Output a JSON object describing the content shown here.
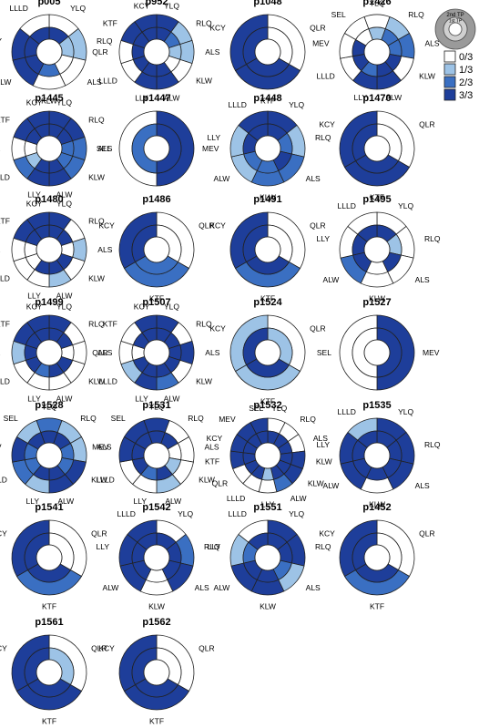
{
  "chart_data": {
    "type": "sunburst",
    "rings": [
      "1st TP",
      "2nd TP"
    ],
    "legend": {
      "position": "top-right",
      "key_labels": [
        "2nd TP",
        "1st TP"
      ],
      "levels": [
        {
          "label": "0/3",
          "value": 0,
          "color": "#ffffff"
        },
        {
          "label": "1/3",
          "value": 1,
          "color": "#9dc3e6"
        },
        {
          "label": "2/3",
          "value": 2,
          "color": "#3a6fc2"
        },
        {
          "label": "3/3",
          "value": 3,
          "color": "#1e3e9a"
        }
      ]
    },
    "patients": [
      {
        "id": "p005",
        "segments": [
          "YLQ",
          "RLQ",
          "ALS",
          "KLW",
          "ALW",
          "LLY",
          "LLLD"
        ],
        "outer": [
          0,
          1,
          0,
          0,
          3,
          3,
          0
        ],
        "inner": [
          3,
          1,
          0,
          2,
          3,
          3,
          3
        ]
      },
      {
        "id": "p952",
        "segments": [
          "YLQ",
          "RLQ",
          "ALS",
          "KLW",
          "ALW",
          "LLY",
          "LLLD",
          "QLR",
          "KTF",
          "KCY"
        ],
        "outer": [
          3,
          1,
          1,
          0,
          3,
          3,
          0,
          0,
          3,
          3
        ],
        "inner": [
          3,
          2,
          1,
          0,
          3,
          3,
          3,
          3,
          3,
          3
        ]
      },
      {
        "id": "p1048",
        "segments": [
          "QLR",
          "KTF",
          "KCY"
        ],
        "outer": [
          0,
          3,
          3
        ],
        "inner": [
          0,
          3,
          3
        ]
      },
      {
        "id": "p1426",
        "segments": [
          "YLQ",
          "RLQ",
          "ALS",
          "KLW",
          "ALW",
          "LLY",
          "LLLD",
          "MEV",
          "SEL"
        ],
        "outer": [
          0,
          1,
          2,
          0,
          3,
          3,
          0,
          0,
          0
        ],
        "inner": [
          1,
          2,
          2,
          3,
          3,
          2,
          3,
          3,
          0
        ]
      },
      {
        "id": "p1445",
        "segments": [
          "YLQ",
          "RLQ",
          "ALS",
          "KLW",
          "ALW",
          "LLY",
          "LLLD",
          "QLR",
          "KTF",
          "KCY"
        ],
        "outer": [
          3,
          3,
          2,
          2,
          3,
          3,
          2,
          0,
          3,
          3
        ],
        "inner": [
          3,
          3,
          2,
          2,
          3,
          3,
          1,
          0,
          3,
          3
        ]
      },
      {
        "id": "p1447",
        "segments": [
          "MEV",
          "SEL"
        ],
        "outer": [
          3,
          0
        ],
        "inner": [
          3,
          2
        ]
      },
      {
        "id": "p1448",
        "segments": [
          "YLQ",
          "RLQ",
          "ALS",
          "KLW",
          "ALW",
          "LLY",
          "LLLD"
        ],
        "outer": [
          3,
          1,
          2,
          2,
          1,
          1,
          3
        ],
        "inner": [
          3,
          2,
          3,
          2,
          2,
          3,
          3
        ]
      },
      {
        "id": "p1470",
        "segments": [
          "QLR",
          "KTF",
          "KCY"
        ],
        "outer": [
          0,
          3,
          3
        ],
        "inner": [
          0,
          3,
          3
        ]
      },
      {
        "id": "p1480",
        "segments": [
          "YLQ",
          "RLQ",
          "ALS",
          "KLW",
          "ALW",
          "LLY",
          "LLLD",
          "QLR",
          "KTF",
          "KCY"
        ],
        "outer": [
          3,
          0,
          1,
          0,
          1,
          0,
          0,
          0,
          3,
          3
        ],
        "inner": [
          3,
          3,
          0,
          3,
          3,
          3,
          0,
          0,
          3,
          3
        ]
      },
      {
        "id": "p1486",
        "segments": [
          "QLR",
          "KTF",
          "KCY"
        ],
        "outer": [
          0,
          2,
          3
        ],
        "inner": [
          0,
          2,
          3
        ]
      },
      {
        "id": "p1491",
        "segments": [
          "QLR",
          "KTF",
          "KCY"
        ],
        "outer": [
          0,
          2,
          3
        ],
        "inner": [
          0,
          3,
          3
        ]
      },
      {
        "id": "p1495",
        "segments": [
          "YLQ",
          "RLQ",
          "ALS",
          "KLW",
          "ALW",
          "LLY",
          "LLLD"
        ],
        "outer": [
          0,
          0,
          0,
          0,
          2,
          0,
          0
        ],
        "inner": [
          3,
          1,
          3,
          0,
          3,
          3,
          3
        ]
      },
      {
        "id": "p1499",
        "segments": [
          "YLQ",
          "RLQ",
          "ALS",
          "KLW",
          "ALW",
          "LLY",
          "LLLD",
          "QLR",
          "KTF",
          "KCY"
        ],
        "outer": [
          3,
          0,
          0,
          0,
          0,
          0,
          0,
          1,
          3,
          3
        ],
        "inner": [
          3,
          3,
          0,
          3,
          3,
          2,
          3,
          3,
          3,
          3
        ]
      },
      {
        "id": "p1507",
        "segments": [
          "YLQ",
          "RLQ",
          "ALS",
          "KLW",
          "ALW",
          "LLY",
          "LLLD",
          "QLR",
          "KTF",
          "KCY"
        ],
        "outer": [
          3,
          0,
          3,
          0,
          2,
          3,
          1,
          0,
          0,
          3
        ],
        "inner": [
          3,
          3,
          3,
          3,
          3,
          3,
          3,
          0,
          3,
          3
        ]
      },
      {
        "id": "p1524",
        "segments": [
          "QLR",
          "KTF",
          "KCY"
        ],
        "outer": [
          0,
          1,
          1
        ],
        "inner": [
          1,
          3,
          3
        ]
      },
      {
        "id": "p1527",
        "segments": [
          "MEV",
          "SEL"
        ],
        "outer": [
          3,
          0
        ],
        "inner": [
          3,
          0
        ]
      },
      {
        "id": "p1528",
        "segments": [
          "YLQ",
          "RLQ",
          "ALS",
          "KLW",
          "ALW",
          "LLY",
          "LLLD",
          "MEV",
          "SEL"
        ],
        "outer": [
          2,
          1,
          1,
          3,
          3,
          1,
          2,
          3,
          1
        ],
        "inner": [
          3,
          3,
          2,
          2,
          3,
          3,
          2,
          2,
          3
        ]
      },
      {
        "id": "p1531",
        "segments": [
          "YLQ",
          "RLQ",
          "ALS",
          "KLW",
          "ALW",
          "LLY",
          "LLLD",
          "MEV",
          "SEL"
        ],
        "outer": [
          3,
          0,
          0,
          0,
          1,
          0,
          0,
          3,
          3
        ],
        "inner": [
          3,
          3,
          0,
          1,
          3,
          2,
          3,
          3,
          3
        ]
      },
      {
        "id": "p1532",
        "segments": [
          "YLQ",
          "RLQ",
          "ALS",
          "KLW",
          "KLW",
          "ALW",
          "LLY",
          "LLLD",
          "QLR",
          "KTF",
          "KCY",
          "MEV",
          "SEL"
        ],
        "outer": [
          0,
          0,
          0,
          3,
          3,
          2,
          0,
          0,
          0,
          3,
          3,
          3,
          3
        ],
        "inner": [
          3,
          3,
          3,
          3,
          3,
          3,
          1,
          3,
          3,
          3,
          3,
          3,
          3
        ]
      },
      {
        "id": "p1535",
        "segments": [
          "YLQ",
          "RLQ",
          "ALS",
          "KLW",
          "ALW",
          "LLY",
          "LLLD"
        ],
        "outer": [
          3,
          3,
          3,
          0,
          3,
          3,
          1
        ],
        "inner": [
          3,
          3,
          3,
          3,
          3,
          3,
          3
        ]
      },
      {
        "id": "p1541",
        "segments": [
          "QLR",
          "KTF",
          "KCY"
        ],
        "outer": [
          0,
          2,
          3
        ],
        "inner": [
          0,
          3,
          3
        ]
      },
      {
        "id": "p1542",
        "segments": [
          "YLQ",
          "RLQ",
          "ALS",
          "KLW",
          "ALW",
          "LLY",
          "LLLD"
        ],
        "outer": [
          0,
          2,
          3,
          0,
          3,
          3,
          3
        ],
        "inner": [
          3,
          3,
          3,
          0,
          3,
          3,
          3
        ]
      },
      {
        "id": "p1551",
        "segments": [
          "YLQ",
          "RLQ",
          "ALS",
          "KLW",
          "ALW",
          "LLY",
          "LLLD"
        ],
        "outer": [
          3,
          3,
          1,
          3,
          3,
          1,
          0
        ],
        "inner": [
          3,
          3,
          2,
          3,
          3,
          2,
          3
        ]
      },
      {
        "id": "p1452",
        "segments": [
          "QLR",
          "KTF",
          "KCY"
        ],
        "outer": [
          0,
          2,
          3
        ],
        "inner": [
          0,
          3,
          3
        ]
      },
      {
        "id": "p1561",
        "segments": [
          "QLR",
          "KTF",
          "KCY"
        ],
        "outer": [
          0,
          3,
          3
        ],
        "inner": [
          1,
          3,
          3
        ]
      },
      {
        "id": "p1562",
        "segments": [
          "QLR",
          "KTF",
          "KCY"
        ],
        "outer": [
          0,
          3,
          3
        ],
        "inner": [
          0,
          3,
          3
        ]
      }
    ]
  }
}
